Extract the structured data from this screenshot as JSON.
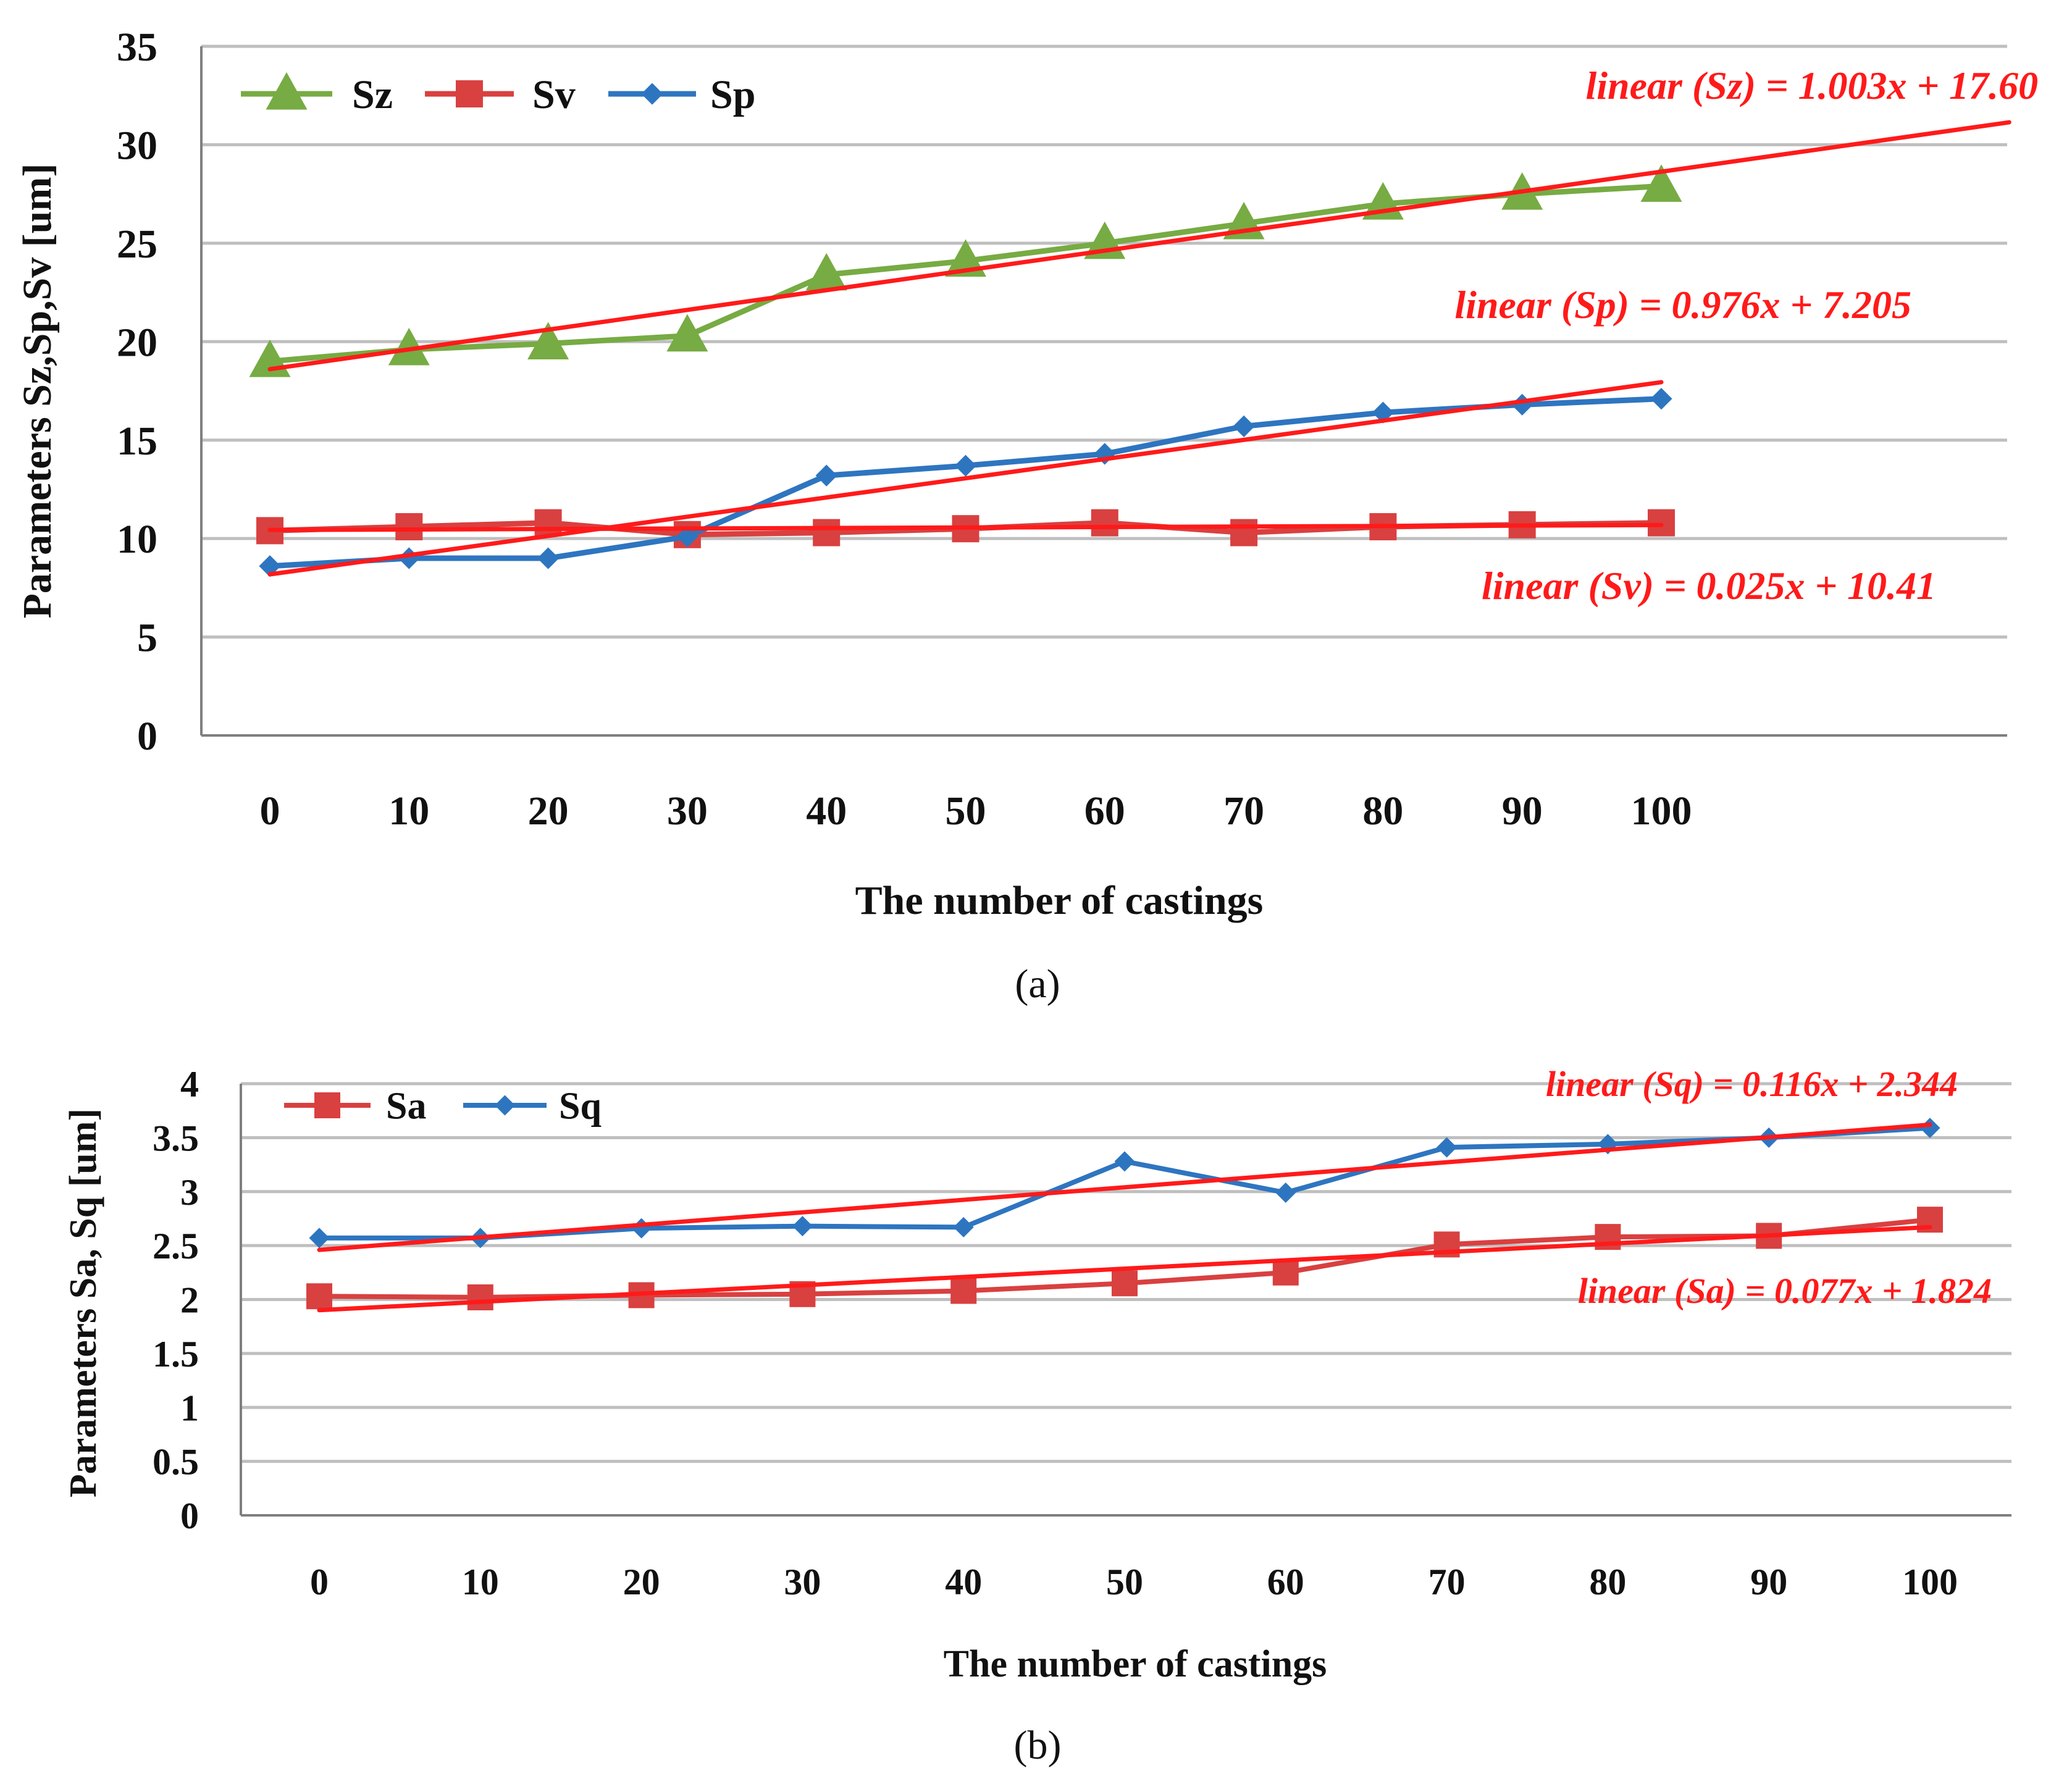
{
  "colors": {
    "Sz": "#77AB43",
    "Sv": "#D94040",
    "Sp": "#2E75C0",
    "Sa": "#D94040",
    "Sq": "#2E75C0",
    "trend": "#FF1A1A",
    "grid": "#BFBFBF",
    "axis": "#7F7F7F"
  },
  "chart_data": [
    {
      "type": "line",
      "caption": "(a)",
      "xlabel": "The number of castings",
      "ylabel": "Parameters Sz,Sp,Sv [um]",
      "categories": [
        "0",
        "10",
        "20",
        "30",
        "40",
        "50",
        "60",
        "70",
        "80",
        "90",
        "100"
      ],
      "x": [
        0,
        10,
        20,
        30,
        40,
        50,
        60,
        70,
        80,
        90,
        100
      ],
      "ylim": [
        0,
        35
      ],
      "yticks": [
        "0",
        "5",
        "10",
        "15",
        "20",
        "25",
        "30",
        "35"
      ],
      "grid": true,
      "legend_position": "top-left",
      "series": [
        {
          "name": "Sz",
          "marker": "triangle",
          "values": [
            19.0,
            19.6,
            19.9,
            20.3,
            23.4,
            24.1,
            25.0,
            26.0,
            27.0,
            27.5,
            27.9
          ]
        },
        {
          "name": "Sv",
          "marker": "square",
          "values": [
            10.4,
            10.6,
            10.8,
            10.2,
            10.3,
            10.5,
            10.8,
            10.3,
            10.6,
            10.7,
            10.8
          ]
        },
        {
          "name": "Sp",
          "marker": "diamond",
          "values": [
            8.6,
            9.0,
            9.0,
            10.1,
            13.2,
            13.7,
            14.3,
            15.7,
            16.4,
            16.8,
            17.1
          ]
        }
      ],
      "trendlines": [
        {
          "series": "Sz",
          "label": "linear (Sz) = 1.003x + 17.60",
          "slope": 1.003,
          "intercept": 17.6,
          "x_range": [
            0,
            125
          ]
        },
        {
          "series": "Sp",
          "label": "linear (Sp) = 0.976x + 7.205",
          "slope": 0.976,
          "intercept": 7.205,
          "x_range": [
            0,
            100
          ]
        },
        {
          "series": "Sv",
          "label": "linear (Sv) = 0.025x + 10.41",
          "slope": 0.025,
          "intercept": 10.41,
          "x_range": [
            0,
            100
          ]
        }
      ]
    },
    {
      "type": "line",
      "caption": "(b)",
      "xlabel": "The number of castings",
      "ylabel": "Parameters Sa, Sq [um]",
      "categories": [
        "0",
        "10",
        "20",
        "30",
        "40",
        "50",
        "60",
        "70",
        "80",
        "90",
        "100"
      ],
      "x": [
        0,
        10,
        20,
        30,
        40,
        50,
        60,
        70,
        80,
        90,
        100
      ],
      "ylim": [
        0,
        4
      ],
      "yticks": [
        "0",
        "0.5",
        "1",
        "1.5",
        "2",
        "2.5",
        "3",
        "3.5",
        "4"
      ],
      "grid": true,
      "legend_position": "top-left",
      "series": [
        {
          "name": "Sa",
          "marker": "square",
          "values": [
            2.03,
            2.02,
            2.04,
            2.05,
            2.08,
            2.15,
            2.25,
            2.51,
            2.58,
            2.59,
            2.74
          ]
        },
        {
          "name": "Sq",
          "marker": "diamond",
          "values": [
            2.57,
            2.57,
            2.66,
            2.68,
            2.67,
            3.28,
            2.99,
            3.41,
            3.44,
            3.5,
            3.59
          ]
        }
      ],
      "trendlines": [
        {
          "series": "Sq",
          "label": "linear (Sq) = 0.116x + 2.344",
          "slope": 0.116,
          "intercept": 2.344,
          "x_range": [
            0,
            100
          ]
        },
        {
          "series": "Sa",
          "label": "linear (Sa) = 0.077x + 1.824",
          "slope": 0.077,
          "intercept": 1.824,
          "x_range": [
            0,
            100
          ]
        }
      ]
    }
  ]
}
